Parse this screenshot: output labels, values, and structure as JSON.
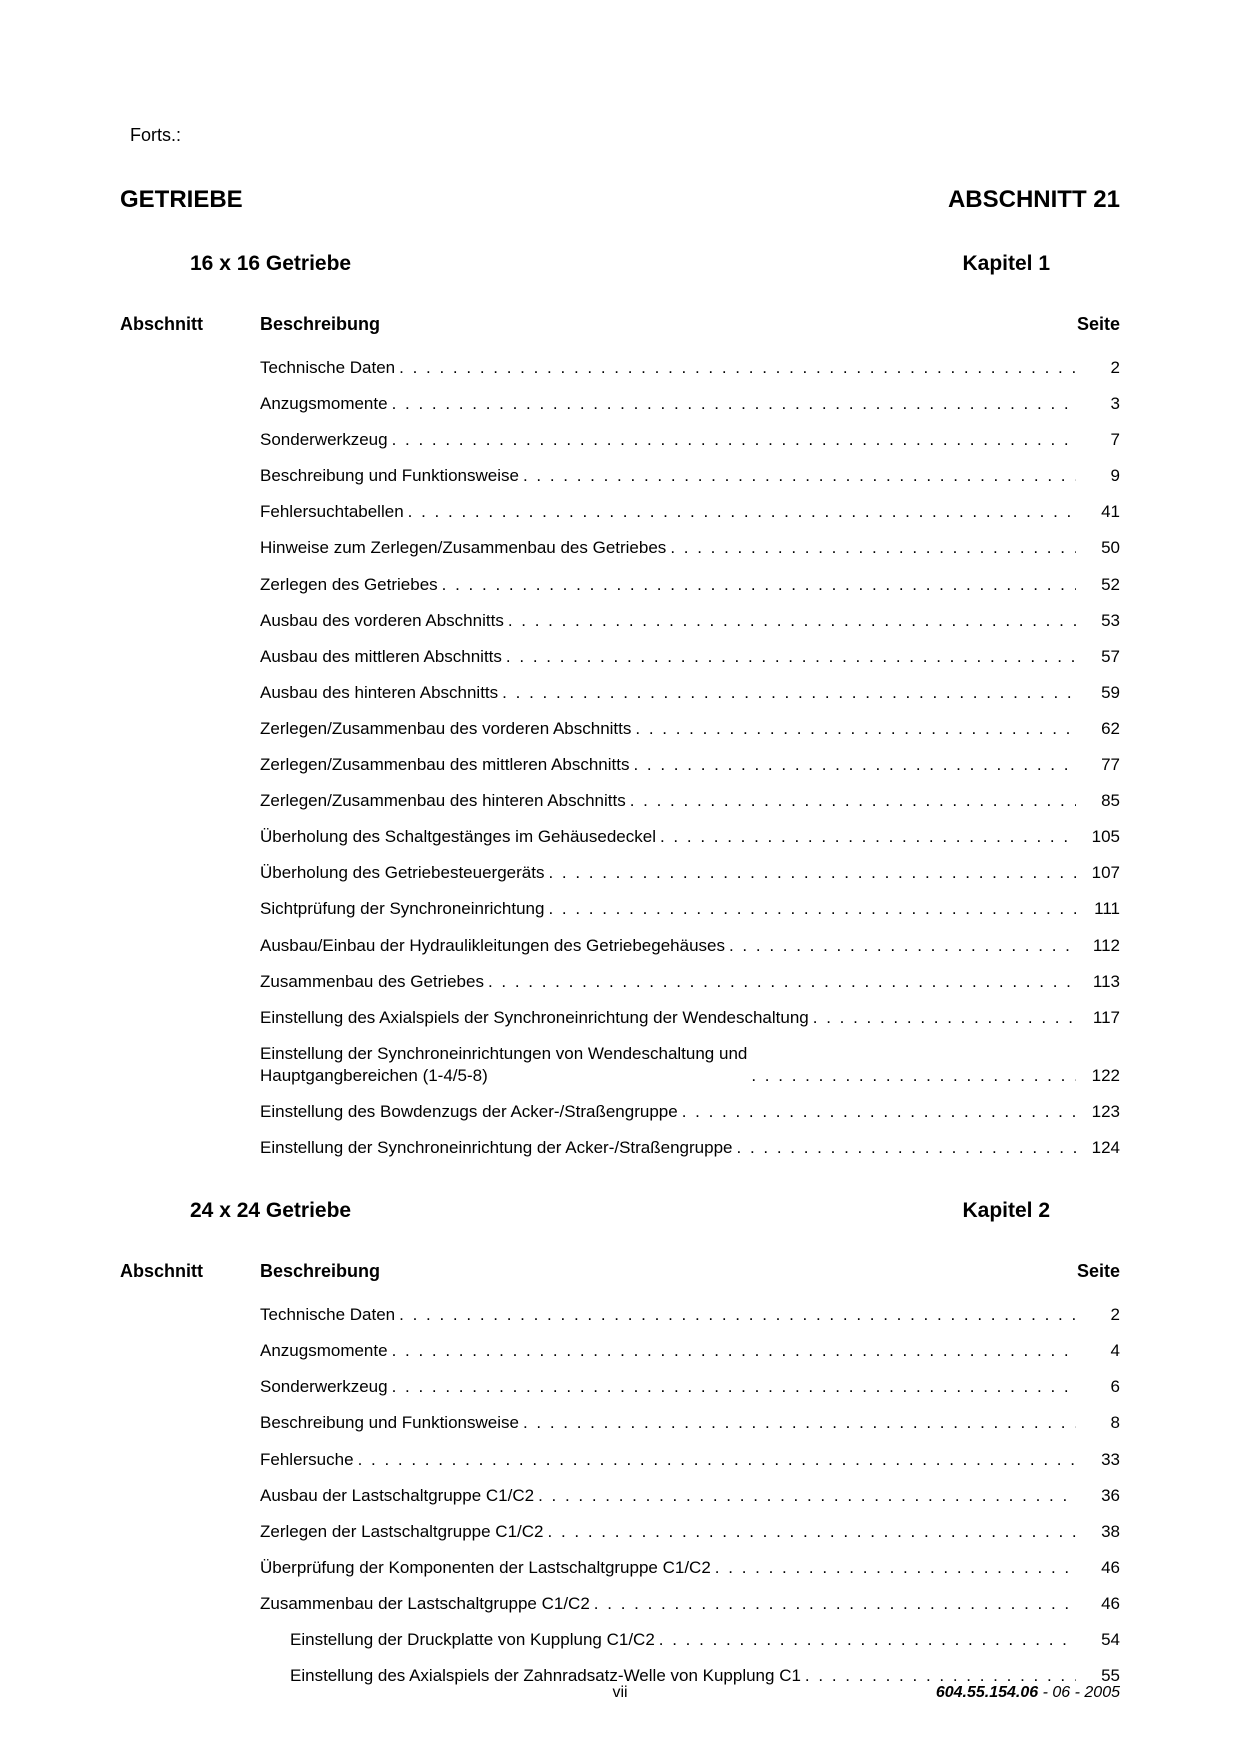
{
  "continuation": "Forts.:",
  "main_header_left": "GETRIEBE",
  "main_header_right": "ABSCHNITT 21",
  "table_headers": {
    "abschnitt": "Abschnitt",
    "beschreibung": "Beschreibung",
    "seite": "Seite"
  },
  "chapters": [
    {
      "title_left": "16 x 16 Getriebe",
      "title_right": "Kapitel 1",
      "entries": [
        {
          "label": "Technische Daten",
          "page": "2",
          "indent": false
        },
        {
          "label": "Anzugsmomente",
          "page": "3",
          "indent": false
        },
        {
          "label": "Sonderwerkzeug",
          "page": "7",
          "indent": false
        },
        {
          "label": "Beschreibung und Funktionsweise",
          "page": "9",
          "indent": false
        },
        {
          "label": "Fehlersuchtabellen",
          "page": "41",
          "indent": false
        },
        {
          "label": "Hinweise zum Zerlegen/Zusammenbau des Getriebes",
          "page": "50",
          "indent": false
        },
        {
          "label": "Zerlegen des Getriebes",
          "page": "52",
          "indent": false
        },
        {
          "label": "Ausbau des vorderen Abschnitts",
          "page": "53",
          "indent": false
        },
        {
          "label": "Ausbau des mittleren Abschnitts",
          "page": "57",
          "indent": false
        },
        {
          "label": "Ausbau des hinteren Abschnitts",
          "page": "59",
          "indent": false
        },
        {
          "label": "Zerlegen/Zusammenbau des vorderen Abschnitts",
          "page": "62",
          "indent": false
        },
        {
          "label": "Zerlegen/Zusammenbau des mittleren Abschnitts",
          "page": "77",
          "indent": false
        },
        {
          "label": "Zerlegen/Zusammenbau des hinteren Abschnitts",
          "page": "85",
          "indent": false
        },
        {
          "label": "Überholung des Schaltgestänges im Gehäusedeckel",
          "page": "105",
          "indent": false
        },
        {
          "label": "Überholung des Getriebesteuergeräts",
          "page": "107",
          "indent": false
        },
        {
          "label": "Sichtprüfung der Synchroneinrichtung",
          "page": "111",
          "indent": false
        },
        {
          "label": "Ausbau/Einbau der Hydraulikleitungen des Getriebegehäuses",
          "page": "112",
          "indent": false
        },
        {
          "label": "Zusammenbau des Getriebes",
          "page": "113",
          "indent": false
        },
        {
          "label": "Einstellung des Axialspiels der Synchroneinrichtung der Wendeschaltung",
          "page": "117",
          "indent": false
        },
        {
          "label": "Einstellung der Synchroneinrichtungen von Wendeschaltung und\nHauptgangbereichen (1-4/5-8)",
          "page": "122",
          "indent": false,
          "multi": true
        },
        {
          "label": "Einstellung des Bowdenzugs der Acker-/Straßengruppe",
          "page": "123",
          "indent": false
        },
        {
          "label": "Einstellung der Synchroneinrichtung der Acker-/Straßengruppe",
          "page": "124",
          "indent": false
        }
      ]
    },
    {
      "title_left": "24 x 24 Getriebe",
      "title_right": "Kapitel 2",
      "entries": [
        {
          "label": "Technische Daten",
          "page": "2",
          "indent": false
        },
        {
          "label": "Anzugsmomente",
          "page": "4",
          "indent": false
        },
        {
          "label": "Sonderwerkzeug",
          "page": "6",
          "indent": false
        },
        {
          "label": "Beschreibung und Funktionsweise",
          "page": "8",
          "indent": false
        },
        {
          "label": "Fehlersuche",
          "page": "33",
          "indent": false
        },
        {
          "label": "Ausbau der Lastschaltgruppe C1/C2",
          "page": "36",
          "indent": false
        },
        {
          "label": "Zerlegen der Lastschaltgruppe C1/C2",
          "page": "38",
          "indent": false
        },
        {
          "label": "Überprüfung der Komponenten der Lastschaltgruppe C1/C2",
          "page": "46",
          "indent": false
        },
        {
          "label": "Zusammenbau der Lastschaltgruppe C1/C2",
          "page": "46",
          "indent": false
        },
        {
          "label": "Einstellung der Druckplatte von Kupplung C1/C2",
          "page": "54",
          "indent": true
        },
        {
          "label": "Einstellung des Axialspiels der Zahnradsatz-Welle von Kupplung C1",
          "page": "55",
          "indent": true
        }
      ]
    }
  ],
  "footer": {
    "page_roman": "vii",
    "doc_number": "604.55.154.06",
    "doc_suffix": " - 06 - 2005"
  }
}
